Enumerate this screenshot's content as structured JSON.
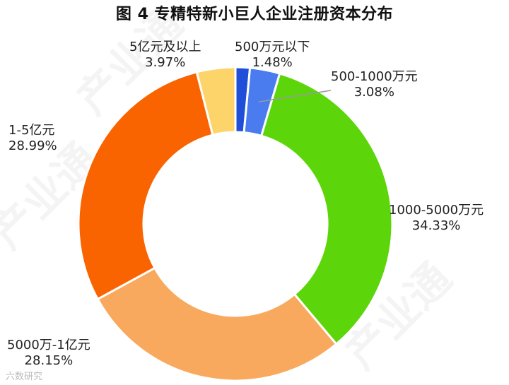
{
  "chart_data": {
    "type": "pie",
    "donut": true,
    "title": "图 4  专精特新小巨人企业注册资本分布",
    "slices": [
      {
        "label": "500万元以下",
        "value": 1.48,
        "value_label": "1.48%",
        "color": "#1F4FD8"
      },
      {
        "label": "500-1000万元",
        "value": 3.08,
        "value_label": "3.08%",
        "color": "#4A7CF0"
      },
      {
        "label": "1000-5000万元",
        "value": 34.33,
        "value_label": "34.33%",
        "color": "#5CD60A"
      },
      {
        "label": "5000万-1亿元",
        "value": 28.15,
        "value_label": "28.15%",
        "color": "#F8A95E"
      },
      {
        "label": "1-5亿元",
        "value": 28.99,
        "value_label": "28.99%",
        "color": "#FA6400"
      },
      {
        "label": "5亿元及以上",
        "value": 3.97,
        "value_label": "3.97%",
        "color": "#FCD46A"
      }
    ],
    "legend": "none"
  },
  "watermark": "产业通",
  "footer": "六数研究"
}
